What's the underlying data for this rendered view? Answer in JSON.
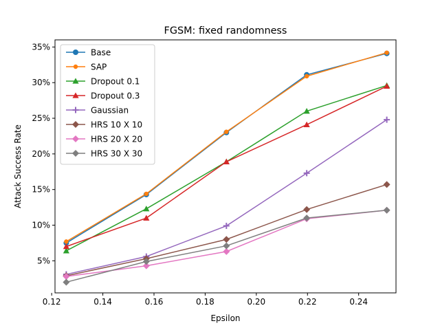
{
  "chart_data": {
    "type": "line",
    "title": "FGSM: fixed randomness",
    "xlabel": "Epsilon",
    "ylabel": "Attack Success Rate",
    "xlim": [
      0.1213,
      0.2546
    ],
    "ylim": [
      0.005,
      0.36
    ],
    "xticks": [
      0.12,
      0.14,
      0.16,
      0.18,
      0.2,
      0.22,
      0.24
    ],
    "xtick_labels": [
      "0.12",
      "0.14",
      "0.16",
      "0.18",
      "0.20",
      "0.22",
      "0.24"
    ],
    "yticks": [
      0.05,
      0.1,
      0.15,
      0.2,
      0.25,
      0.3,
      0.35
    ],
    "ytick_labels": [
      "5%",
      "10%",
      "15%",
      "20%",
      "25%",
      "30%",
      "35%"
    ],
    "legend_position": "upper-left",
    "x": [
      0.1257,
      0.157,
      0.1883,
      0.2197,
      0.251
    ],
    "series": [
      {
        "name": "Base",
        "color": "#1f77b4",
        "marker": "circle",
        "values": [
          0.075,
          0.143,
          0.23,
          0.311,
          0.341
        ]
      },
      {
        "name": "SAP",
        "color": "#ff7f0e",
        "marker": "circle-small",
        "values": [
          0.077,
          0.144,
          0.231,
          0.309,
          0.342
        ]
      },
      {
        "name": "Dropout 0.1",
        "color": "#2ca02c",
        "marker": "triangle",
        "values": [
          0.064,
          0.123,
          0.189,
          0.26,
          0.296
        ]
      },
      {
        "name": "Dropout 0.3",
        "color": "#d62728",
        "marker": "triangle",
        "values": [
          0.07,
          0.11,
          0.189,
          0.241,
          0.295
        ]
      },
      {
        "name": "Gaussian",
        "color": "#9467bd",
        "marker": "plus",
        "values": [
          0.031,
          0.056,
          0.099,
          0.173,
          0.248
        ]
      },
      {
        "name": "HRS 10 X 10",
        "color": "#8c564b",
        "marker": "diamond",
        "values": [
          0.029,
          0.053,
          0.08,
          0.122,
          0.157
        ]
      },
      {
        "name": "HRS 20 X 20",
        "color": "#e377c2",
        "marker": "diamond",
        "values": [
          0.028,
          0.043,
          0.063,
          0.109,
          0.121
        ]
      },
      {
        "name": "HRS 30 X 30",
        "color": "#7f7f7f",
        "marker": "diamond",
        "values": [
          0.02,
          0.049,
          0.071,
          0.11,
          0.121
        ]
      }
    ]
  }
}
